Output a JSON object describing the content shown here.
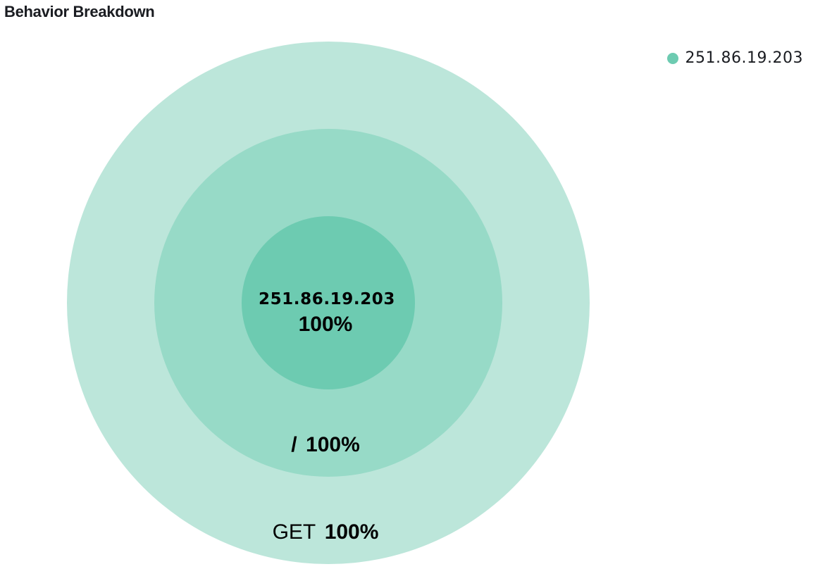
{
  "panel": {
    "title": "Behavior Breakdown"
  },
  "legend": {
    "items": [
      {
        "label": "251.86.19.203",
        "color": "#6dcbb1"
      }
    ]
  },
  "chart_data": {
    "type": "sunburst",
    "title": "Behavior Breakdown",
    "legend_position": "top-right",
    "rings": [
      {
        "level": "inner",
        "name": "251.86.19.203",
        "percent": 100,
        "percent_label": "100%",
        "color": "#6dcbb1"
      },
      {
        "level": "middle",
        "name": "/",
        "percent": 100,
        "percent_label": "100%",
        "color": "#97dac7"
      },
      {
        "level": "outer",
        "name": "GET",
        "percent": 100,
        "percent_label": "100%",
        "color": "#bce6da"
      }
    ]
  }
}
